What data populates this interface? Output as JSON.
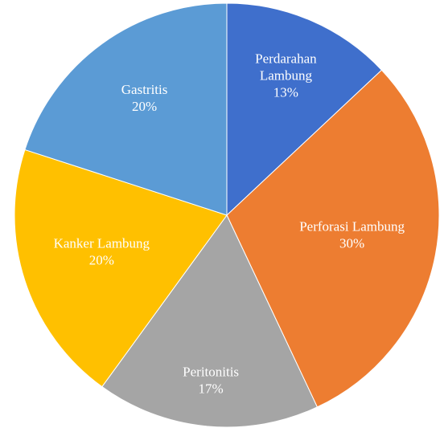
{
  "chart_data": {
    "type": "pie",
    "categories": [
      "Perdarahan Lambung",
      "Perforasi Lambung",
      "Peritonitis",
      "Kanker Lambung",
      "Gastritis"
    ],
    "values": [
      13,
      30,
      17,
      20,
      20
    ],
    "value_labels": [
      "13%",
      "30%",
      "17%",
      "20%",
      "20%"
    ],
    "colors": [
      "#3f6fcc",
      "#ed7d31",
      "#a5a5a5",
      "#ffc000",
      "#5b9bd5"
    ],
    "start_angle": 0,
    "direction": "clockwise"
  }
}
